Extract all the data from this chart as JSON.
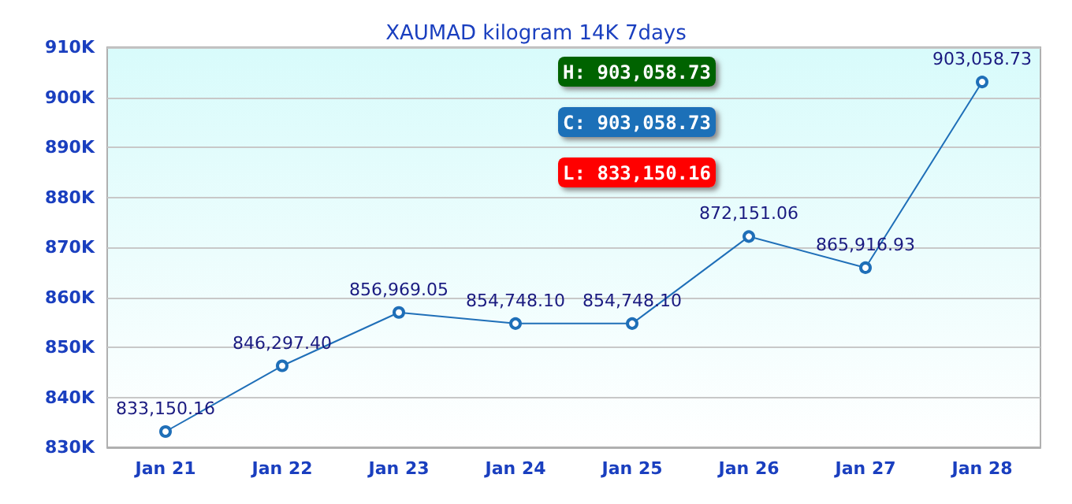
{
  "chart_data": {
    "type": "line",
    "title": "XAUMAD kilogram 14K 7days",
    "categories": [
      "Jan 21",
      "Jan 22",
      "Jan 23",
      "Jan 24",
      "Jan 25",
      "Jan 26",
      "Jan 27",
      "Jan 28"
    ],
    "series": [
      {
        "color": "#1f6fb8",
        "values": [
          833150.16,
          846297.4,
          856969.05,
          854748.1,
          854748.1,
          872151.06,
          865916.93,
          903058.73
        ],
        "value_labels": [
          "833,150.16",
          "846,297.40",
          "856,969.05",
          "854,748.10",
          "854,748.10",
          "872,151.06",
          "865,916.93",
          "903,058.73"
        ]
      }
    ],
    "ylim": [
      830000,
      910000
    ],
    "yticks": [
      {
        "value": 830000,
        "label": "830K"
      },
      {
        "value": 840000,
        "label": "840K"
      },
      {
        "value": 850000,
        "label": "850K"
      },
      {
        "value": 860000,
        "label": "860K"
      },
      {
        "value": 870000,
        "label": "870K"
      },
      {
        "value": 880000,
        "label": "880K"
      },
      {
        "value": 890000,
        "label": "890K"
      },
      {
        "value": 900000,
        "label": "900K"
      },
      {
        "value": 910000,
        "label": "910K"
      }
    ],
    "grid": "y",
    "marker": "circle",
    "line_style": "solid",
    "annotations": [
      "H: 903,058.73",
      "C: 903,058.73",
      "L: 833,150.16"
    ]
  }
}
